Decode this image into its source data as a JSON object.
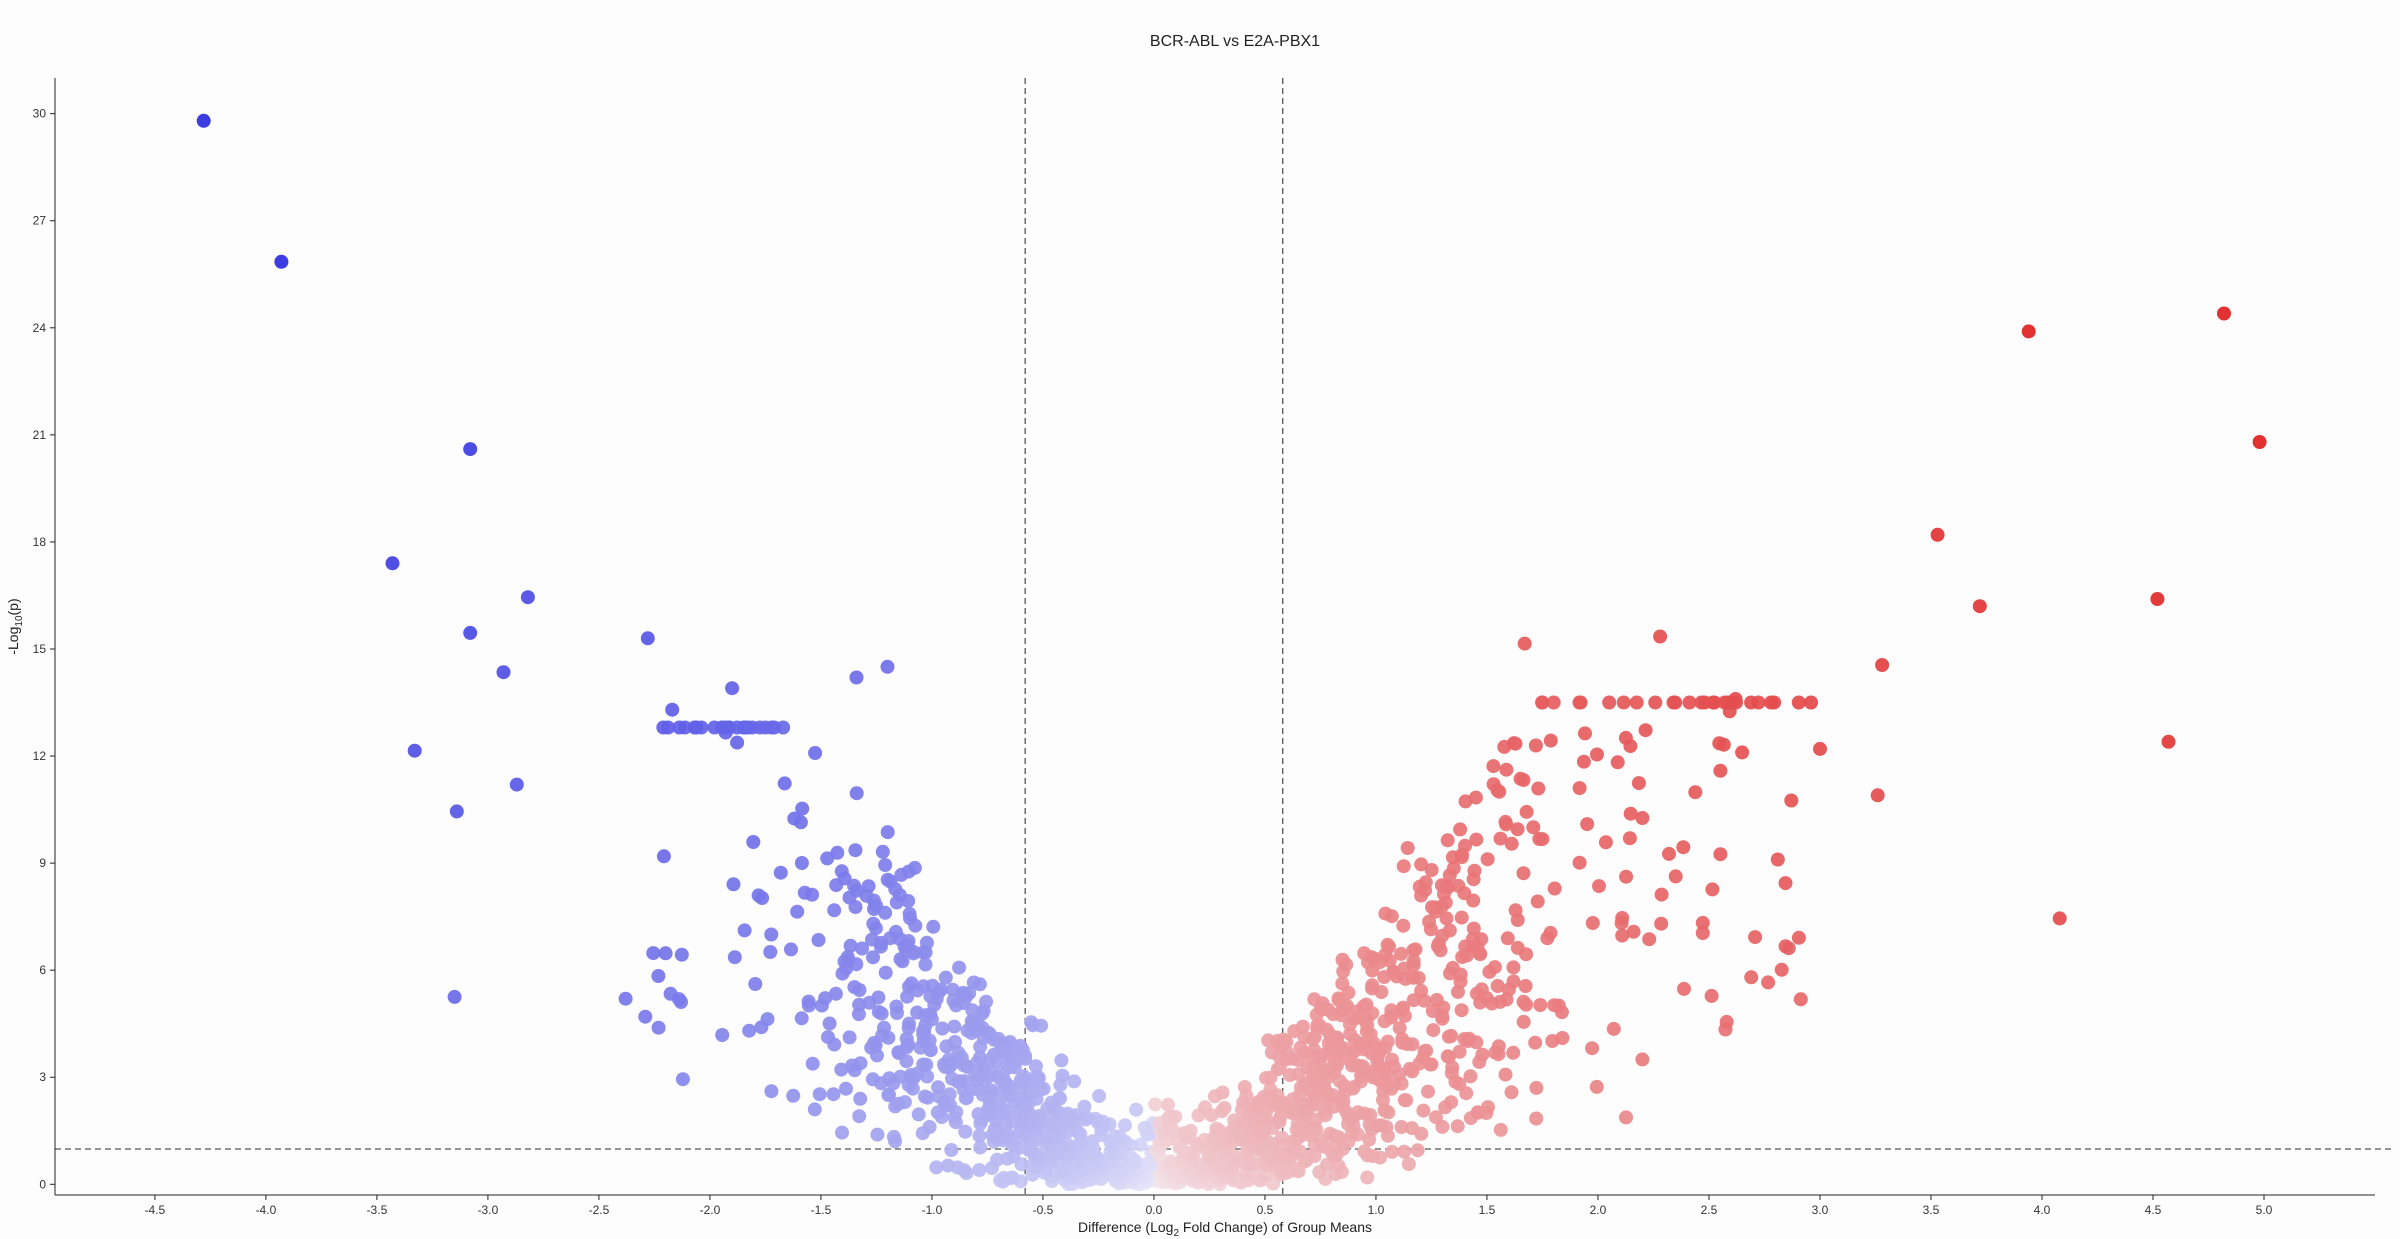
{
  "chart_data": {
    "type": "scatter",
    "title": "BCR-ABL vs E2A-PBX1",
    "xlabel": {
      "prefix": "Difference (Log",
      "sub": "2",
      "suffix": " Fold Change) of Group Means"
    },
    "ylabel": {
      "prefix": "-Log",
      "sub": "10",
      "suffix": "(p)"
    },
    "xlim": [
      -4.95,
      5.5
    ],
    "ylim": [
      -0.3,
      31.0
    ],
    "x_ticks": [
      "-4.5",
      "-4.0",
      "-3.5",
      "-3.0",
      "-2.5",
      "-2.0",
      "-1.5",
      "-1.0",
      "-0.5",
      "0.0",
      "0.5",
      "1.0",
      "1.5",
      "2.0",
      "2.5",
      "3.0",
      "3.5",
      "4.0",
      "4.5",
      "5.0"
    ],
    "y_ticks": [
      "0",
      "3",
      "6",
      "9",
      "12",
      "15",
      "18",
      "21",
      "24",
      "27",
      "30"
    ],
    "fold_change_thresholds": [
      -0.58,
      0.58
    ],
    "significance_threshold": 0.99,
    "colors": {
      "down": "#2b2be0",
      "up": "#e02020",
      "neutral": "#f4f4fa",
      "threshold_line": "#555555"
    },
    "labeled_points": [
      {
        "x": -4.28,
        "y": 29.8
      },
      {
        "x": -3.93,
        "y": 25.85
      },
      {
        "x": -3.08,
        "y": 20.6
      },
      {
        "x": -3.43,
        "y": 17.4
      },
      {
        "x": -2.82,
        "y": 16.45
      },
      {
        "x": -3.08,
        "y": 15.45
      },
      {
        "x": -2.93,
        "y": 14.35
      },
      {
        "x": -3.33,
        "y": 12.15
      },
      {
        "x": -2.87,
        "y": 11.2
      },
      {
        "x": -3.14,
        "y": 10.45
      },
      {
        "x": -3.15,
        "y": 5.25
      },
      {
        "x": -2.38,
        "y": 5.2
      },
      {
        "x": -2.28,
        "y": 15.3
      },
      {
        "x": -1.9,
        "y": 13.9
      },
      {
        "x": -2.17,
        "y": 13.3
      },
      {
        "x": -1.2,
        "y": 14.5
      },
      {
        "x": -1.34,
        "y": 14.2
      },
      {
        "x": 1.67,
        "y": 15.15
      },
      {
        "x": 2.28,
        "y": 15.35
      },
      {
        "x": 3.28,
        "y": 14.55
      },
      {
        "x": 2.62,
        "y": 13.6
      },
      {
        "x": 3.94,
        "y": 23.9
      },
      {
        "x": 4.82,
        "y": 24.4
      },
      {
        "x": 4.98,
        "y": 20.8
      },
      {
        "x": 3.53,
        "y": 18.2
      },
      {
        "x": 3.72,
        "y": 16.2
      },
      {
        "x": 4.52,
        "y": 16.4
      },
      {
        "x": 4.57,
        "y": 12.4
      },
      {
        "x": 4.08,
        "y": 7.45
      },
      {
        "x": 3.0,
        "y": 12.2
      },
      {
        "x": 3.26,
        "y": 10.9
      },
      {
        "x": 2.81,
        "y": 9.1
      },
      {
        "x": 2.69,
        "y": 5.8
      },
      {
        "x": 2.58,
        "y": 4.55
      },
      {
        "x": 2.2,
        "y": 3.5
      },
      {
        "x": 1.84,
        "y": 4.1
      }
    ],
    "cloud": {
      "n_points": 1480,
      "seed": 12345,
      "gene_count_note": "remaining points sampled around the volcano envelope"
    }
  }
}
